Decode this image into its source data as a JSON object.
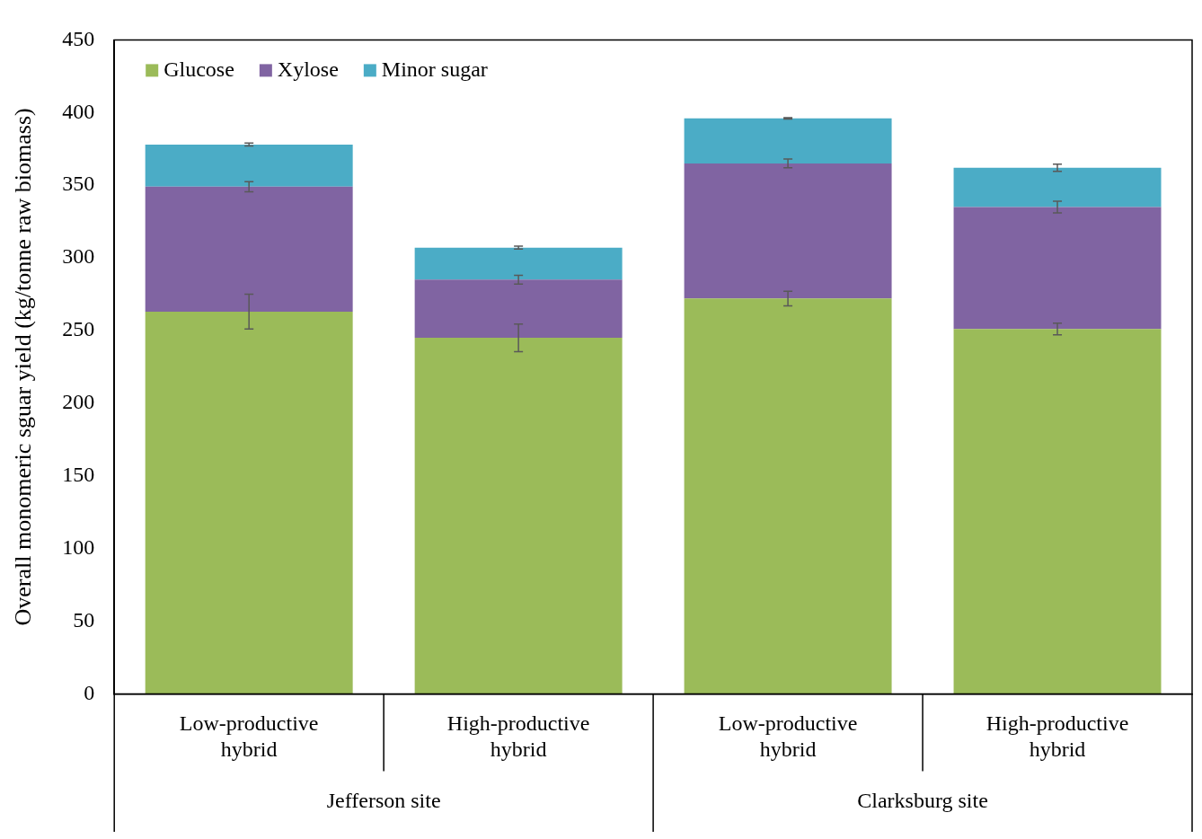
{
  "chart_data": {
    "type": "bar",
    "stacked": true,
    "ylabel": "Overall monomeric sguar yield (kg/tonne raw biomass)",
    "categories": [
      "Low-productive hybrid",
      "High-productive hybrid",
      "Low-productive hybrid",
      "High-productive hybrid"
    ],
    "series": [
      {
        "name": "Glucose",
        "color": "#9bbb59",
        "values": [
          263,
          245,
          272,
          251
        ],
        "errors": [
          12,
          9.5,
          5,
          4
        ]
      },
      {
        "name": "Xylose",
        "color": "#8064a2",
        "values": [
          86,
          40,
          93,
          84
        ],
        "errors": [
          3.5,
          3,
          3,
          4
        ]
      },
      {
        "name": "Minor sugar",
        "color": "#4bacc6",
        "values": [
          29,
          22,
          31,
          27
        ],
        "errors": [
          1,
          1,
          0.5,
          2.5
        ]
      }
    ],
    "annotations": [
      "Jefferson site",
      "Clarksburg site"
    ],
    "ylim": [
      0,
      450
    ],
    "yticks": [
      0,
      50,
      100,
      150,
      200,
      250,
      300,
      350,
      400,
      450
    ],
    "grid": false,
    "legend": "top left"
  }
}
